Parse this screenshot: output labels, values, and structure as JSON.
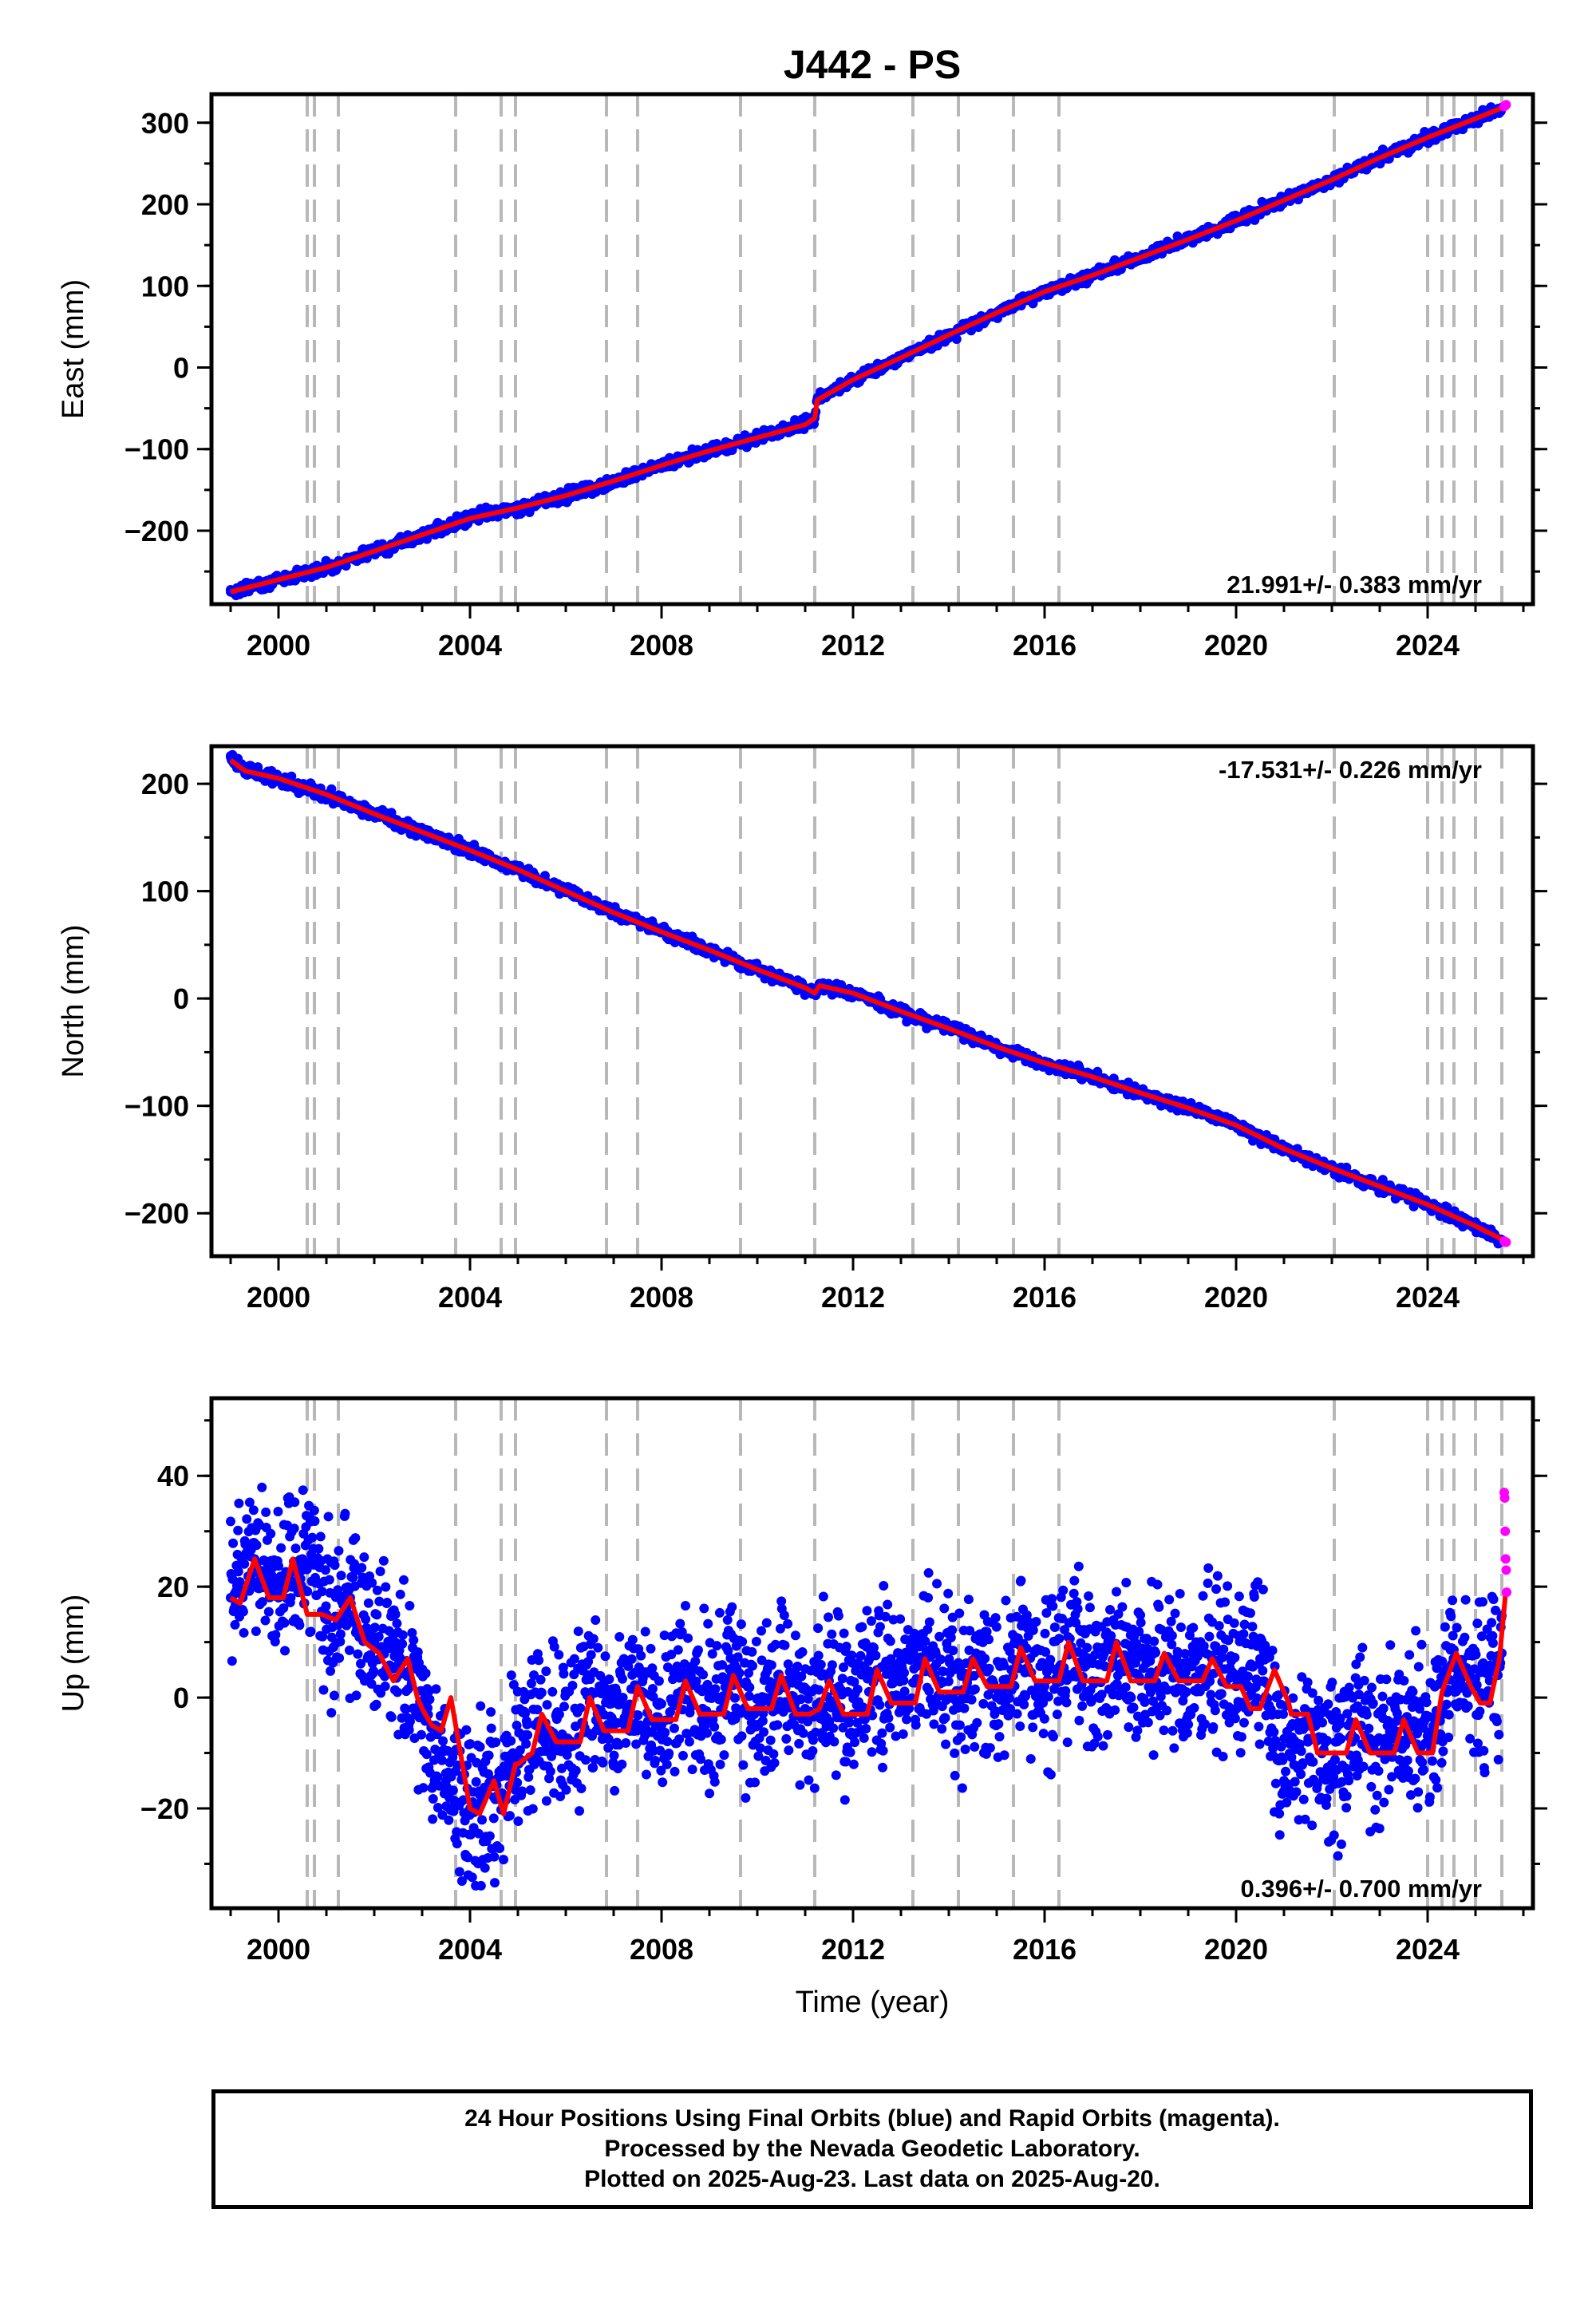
{
  "title": "J442 - PS",
  "chart_data": [
    {
      "type": "scatter",
      "panel": "east",
      "ylabel": "East (mm)",
      "xlim": [
        1998.6,
        2026.2
      ],
      "ylim": [
        -290,
        335
      ],
      "yticks": [
        -200,
        -100,
        0,
        100,
        200,
        300
      ],
      "yticklabels": [
        "−200",
        "−100",
        "0",
        "100",
        "200",
        "300"
      ],
      "xticks": [
        2000,
        2004,
        2008,
        2012,
        2016,
        2020,
        2024
      ],
      "xticklabels": [
        "2000",
        "2004",
        "2008",
        "2012",
        "2016",
        "2020",
        "2024"
      ],
      "rate_label": "21.991+/- 0.383 mm/yr",
      "rate_position": "bottom-right",
      "series": [
        {
          "name": "Final Orbits (blue)",
          "color": "#0000ff",
          "x": [
            1999.0,
            2000.0,
            2001.0,
            2002.0,
            2003.0,
            2004.0,
            2005.0,
            2006.0,
            2007.0,
            2008.0,
            2009.0,
            2010.0,
            2011.0,
            2011.2,
            2011.25,
            2012.0,
            2013.0,
            2014.0,
            2015.0,
            2016.0,
            2017.0,
            2018.0,
            2019.0,
            2020.0,
            2021.0,
            2022.0,
            2023.0,
            2024.0,
            2025.0,
            2025.55
          ],
          "y": [
            -275,
            -260,
            -245,
            -225,
            -205,
            -185,
            -172,
            -157,
            -139,
            -120,
            -102,
            -86,
            -70,
            -62,
            -40,
            -15,
            12,
            40,
            67,
            93,
            113,
            135,
            157,
            180,
            205,
            230,
            257,
            282,
            305,
            318
          ]
        },
        {
          "name": "Rapid Orbits (magenta)",
          "color": "#ff00ff",
          "x": [
            2025.6,
            2025.62,
            2025.64
          ],
          "y": [
            320,
            321,
            322
          ]
        },
        {
          "name": "model",
          "color": "#ff0000",
          "x": [
            1999.0,
            2000.0,
            2001.0,
            2002.0,
            2003.0,
            2004.0,
            2005.0,
            2006.0,
            2007.0,
            2008.0,
            2009.0,
            2010.0,
            2011.0,
            2011.2,
            2011.25,
            2012.0,
            2013.0,
            2014.0,
            2015.0,
            2016.0,
            2017.0,
            2018.0,
            2019.0,
            2020.0,
            2021.0,
            2022.0,
            2023.0,
            2024.0,
            2025.0,
            2025.63
          ],
          "y": [
            -275,
            -260,
            -245,
            -225,
            -205,
            -185,
            -172,
            -157,
            -139,
            -120,
            -102,
            -86,
            -70,
            -62,
            -40,
            -15,
            12,
            40,
            67,
            93,
            113,
            135,
            157,
            180,
            205,
            230,
            257,
            282,
            305,
            320
          ]
        }
      ]
    },
    {
      "type": "scatter",
      "panel": "north",
      "ylabel": "North (mm)",
      "xlim": [
        1998.6,
        2026.2
      ],
      "ylim": [
        -240,
        235
      ],
      "yticks": [
        -200,
        -100,
        0,
        100,
        200
      ],
      "yticklabels": [
        "−200",
        "−100",
        "0",
        "100",
        "200"
      ],
      "xticks": [
        2000,
        2004,
        2008,
        2012,
        2016,
        2020,
        2024
      ],
      "xticklabels": [
        "2000",
        "2004",
        "2008",
        "2012",
        "2016",
        "2020",
        "2024"
      ],
      "rate_label": "-17.531+/- 0.226 mm/yr",
      "rate_position": "top-right",
      "series": [
        {
          "name": "Final Orbits (blue)",
          "color": "#0000ff",
          "x": [
            1999.0,
            1999.3,
            2000.0,
            2001.0,
            2002.0,
            2003.0,
            2004.0,
            2005.0,
            2006.0,
            2007.0,
            2008.0,
            2009.0,
            2010.0,
            2011.0,
            2011.2,
            2011.3,
            2012.0,
            2013.0,
            2014.0,
            2015.0,
            2016.0,
            2017.0,
            2018.0,
            2019.0,
            2020.0,
            2021.0,
            2022.0,
            2023.0,
            2024.0,
            2025.0,
            2025.55
          ],
          "y": [
            225,
            213,
            205,
            190,
            172,
            155,
            138,
            120,
            100,
            80,
            62,
            45,
            27,
            10,
            5,
            12,
            5,
            -12,
            -28,
            -45,
            -60,
            -73,
            -88,
            -102,
            -118,
            -140,
            -158,
            -175,
            -192,
            -212,
            -225
          ]
        },
        {
          "name": "Rapid Orbits (magenta)",
          "color": "#ff00ff",
          "x": [
            2025.6,
            2025.62,
            2025.64
          ],
          "y": [
            -226,
            -227,
            -227
          ]
        },
        {
          "name": "model",
          "color": "#ff0000",
          "x": [
            1999.0,
            1999.3,
            2000.0,
            2001.0,
            2002.0,
            2003.0,
            2004.0,
            2005.0,
            2006.0,
            2007.0,
            2008.0,
            2009.0,
            2010.0,
            2011.0,
            2011.2,
            2011.3,
            2012.0,
            2013.0,
            2014.0,
            2015.0,
            2016.0,
            2017.0,
            2018.0,
            2019.0,
            2020.0,
            2021.0,
            2022.0,
            2023.0,
            2024.0,
            2025.0,
            2025.63
          ],
          "y": [
            222,
            212,
            205,
            190,
            172,
            155,
            138,
            120,
            100,
            80,
            62,
            45,
            27,
            10,
            5,
            12,
            5,
            -12,
            -28,
            -45,
            -60,
            -73,
            -88,
            -102,
            -118,
            -140,
            -158,
            -175,
            -192,
            -212,
            -226
          ]
        }
      ]
    },
    {
      "type": "scatter",
      "panel": "up",
      "ylabel": "Up (mm)",
      "xlabel": "Time (year)",
      "xlim": [
        1998.6,
        2026.2
      ],
      "ylim": [
        -38,
        54
      ],
      "yticks": [
        -20,
        0,
        20,
        40
      ],
      "yticklabels": [
        "−20",
        "0",
        "20",
        "40"
      ],
      "xticks": [
        2000,
        2004,
        2008,
        2012,
        2016,
        2020,
        2024
      ],
      "xticklabels": [
        "2000",
        "2004",
        "2008",
        "2012",
        "2016",
        "2020",
        "2024"
      ],
      "rate_label": "0.396+/- 0.700 mm/yr",
      "rate_position": "bottom-right",
      "series": [
        {
          "name": "Final Orbits (blue)",
          "color": "#0000ff",
          "x": [
            1999.0,
            1999.5,
            2000.0,
            2000.5,
            2001.0,
            2001.5,
            2002.0,
            2002.5,
            2003.0,
            2003.5,
            2004.0,
            2004.5,
            2005.0,
            2005.5,
            2006.0,
            2006.5,
            2007.0,
            2007.5,
            2008.0,
            2008.5,
            2009.0,
            2009.5,
            2010.0,
            2010.5,
            2011.0,
            2011.5,
            2012.0,
            2012.5,
            2013.0,
            2013.5,
            2014.0,
            2014.5,
            2015.0,
            2015.5,
            2016.0,
            2016.5,
            2017.0,
            2017.5,
            2018.0,
            2018.5,
            2019.0,
            2019.5,
            2020.0,
            2020.5,
            2021.0,
            2021.5,
            2022.0,
            2022.5,
            2023.0,
            2023.5,
            2024.0,
            2024.5,
            2025.0,
            2025.55
          ],
          "y": [
            18,
            25,
            18,
            25,
            15,
            18,
            10,
            6,
            -2,
            -15,
            -20,
            -18,
            -10,
            -4,
            -8,
            0,
            -5,
            1,
            -5,
            2,
            -4,
            3,
            -2,
            3,
            -2,
            3,
            -3,
            5,
            0,
            6,
            0,
            6,
            0,
            7,
            2,
            9,
            3,
            8,
            3,
            7,
            3,
            7,
            2,
            7,
            -15,
            -8,
            -12,
            -5,
            -10,
            -4,
            -8,
            6,
            2,
            8
          ]
        },
        {
          "name": "Rapid Orbits (magenta)",
          "color": "#ff00ff",
          "x": [
            2025.6,
            2025.61,
            2025.62,
            2025.63,
            2025.64,
            2025.65
          ],
          "y": [
            37,
            36,
            30,
            25,
            23,
            19
          ]
        },
        {
          "name": "model",
          "color": "#ff0000",
          "x": [
            1999.0,
            1999.2,
            1999.5,
            1999.8,
            2000.1,
            2000.3,
            2000.6,
            2000.9,
            2001.2,
            2001.5,
            2001.8,
            2002.1,
            2002.4,
            2002.7,
            2002.9,
            2003.0,
            2003.2,
            2003.4,
            2003.6,
            2003.7,
            2004.0,
            2004.2,
            2004.5,
            2004.7,
            2004.95,
            2005.0,
            2005.3,
            2005.5,
            2005.8,
            2006.1,
            2006.3,
            2006.5,
            2006.8,
            2007.1,
            2007.3,
            2007.5,
            2007.8,
            2008.1,
            2008.3,
            2008.5,
            2008.8,
            2009.1,
            2009.3,
            2009.5,
            2009.8,
            2010.1,
            2010.3,
            2010.5,
            2010.8,
            2011.1,
            2011.3,
            2011.5,
            2011.8,
            2012.1,
            2012.3,
            2012.5,
            2012.8,
            2013.1,
            2013.3,
            2013.5,
            2013.8,
            2014.1,
            2014.3,
            2014.5,
            2014.8,
            2015.1,
            2015.3,
            2015.5,
            2015.8,
            2016.1,
            2016.3,
            2016.5,
            2016.8,
            2017.1,
            2017.3,
            2017.5,
            2017.8,
            2018.1,
            2018.3,
            2018.5,
            2018.8,
            2019.1,
            2019.3,
            2019.5,
            2019.8,
            2020.1,
            2020.3,
            2020.5,
            2020.8,
            2021.1,
            2021.15,
            2021.3,
            2021.5,
            2021.7,
            2022.0,
            2022.05,
            2022.3,
            2022.5,
            2022.8,
            2023.1,
            2023.3,
            2023.5,
            2023.8,
            2024.0,
            2024.1,
            2024.3,
            2024.6,
            2024.9,
            2025.1,
            2025.3,
            2025.5,
            2025.63
          ],
          "y": [
            18,
            17,
            25,
            18,
            18,
            25,
            15,
            15,
            14,
            18,
            10,
            8,
            3,
            7,
            0,
            -2,
            -5,
            -6,
            0,
            -5,
            -20,
            -21,
            -15,
            -21,
            -12,
            -12,
            -10,
            -3,
            -8,
            -8,
            -8,
            0,
            -6,
            -6,
            -6,
            2,
            -4,
            -4,
            -4,
            3,
            -3,
            -3,
            -3,
            4,
            -2,
            -2,
            -2,
            4,
            -3,
            -3,
            -2,
            3,
            -3,
            -3,
            -3,
            5,
            -1,
            -1,
            -1,
            7,
            1,
            1,
            1,
            7,
            2,
            2,
            2,
            9,
            3,
            3,
            3,
            10,
            3,
            3,
            3,
            10,
            3,
            3,
            3,
            8,
            3,
            3,
            3,
            7,
            2,
            2,
            -2,
            -2,
            5,
            -1,
            -3,
            -3,
            -3,
            -10,
            -10,
            -10,
            -10,
            -4,
            -10,
            -10,
            -10,
            -4,
            -10,
            -10,
            -10,
            1,
            8,
            2,
            -1,
            -1,
            7,
            19
          ]
        }
      ]
    }
  ],
  "event_lines_x": [
    2000.6,
    2000.75,
    2001.25,
    2003.7,
    2004.65,
    2004.95,
    2006.85,
    2007.5,
    2009.65,
    2011.2,
    2013.25,
    2014.2,
    2015.35,
    2016.3,
    2022.05,
    2024.0,
    2024.3,
    2024.55,
    2025.0,
    2025.55
  ],
  "footer": {
    "line1": "24 Hour Positions Using Final Orbits (blue) and Rapid Orbits (magenta).",
    "line2": "Processed by the Nevada Geodetic Laboratory.",
    "line3": "Plotted on 2025-Aug-23. Last data on 2025-Aug-20."
  }
}
